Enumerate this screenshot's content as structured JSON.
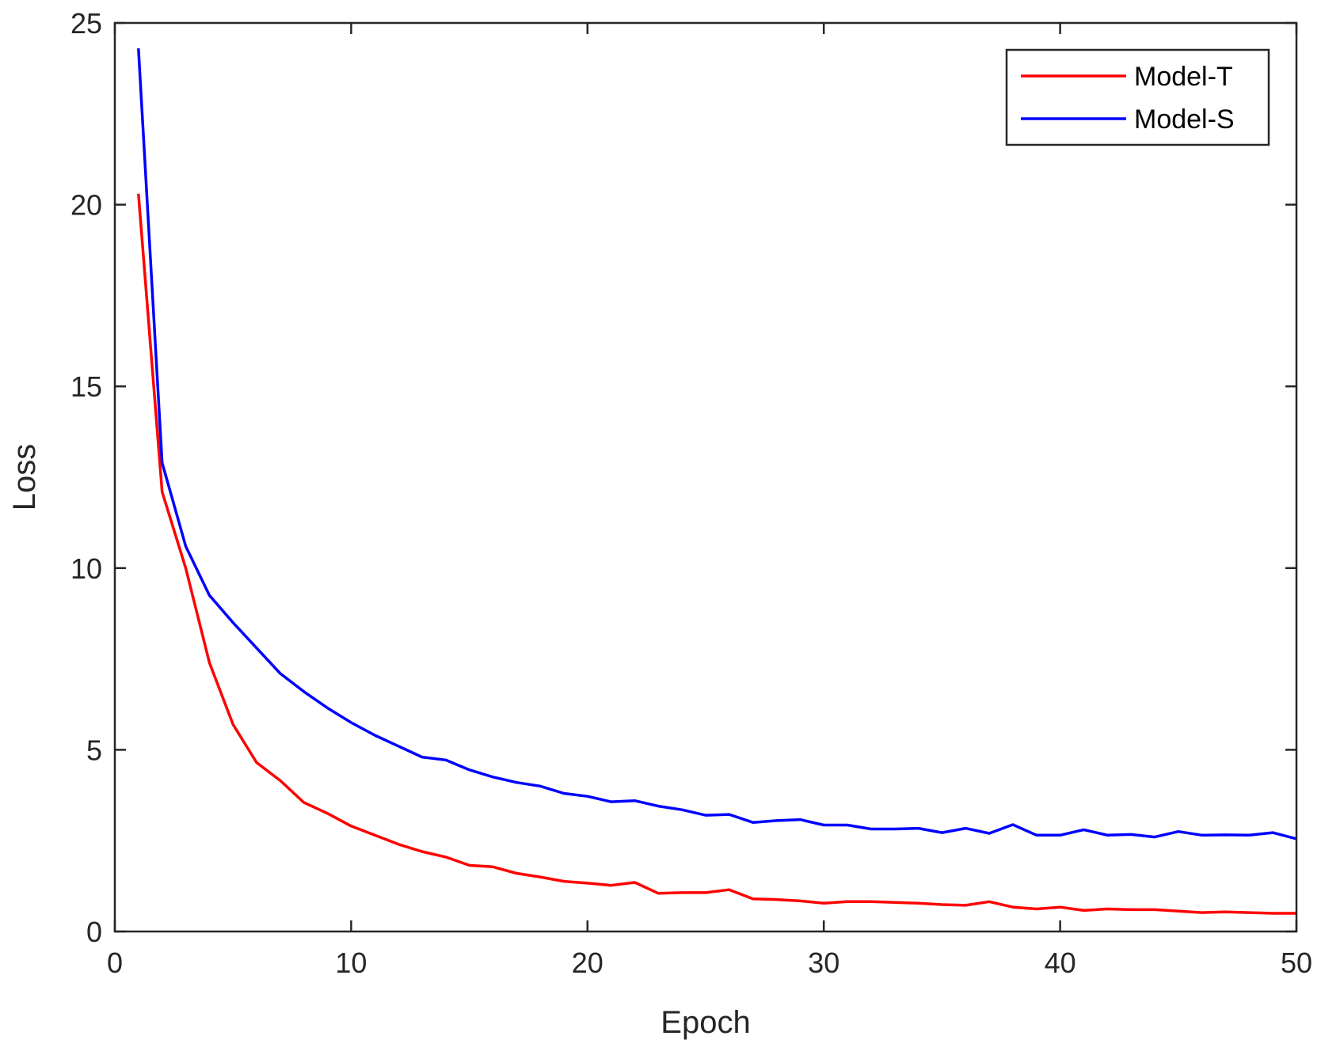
{
  "chart_data": {
    "type": "line",
    "xlabel": "Epoch",
    "ylabel": "Loss",
    "xlim": [
      0,
      50
    ],
    "ylim": [
      0,
      25
    ],
    "xticks": [
      0,
      10,
      20,
      30,
      40,
      50
    ],
    "yticks": [
      0,
      5,
      10,
      15,
      20,
      25
    ],
    "grid": false,
    "legend_position": "top-right",
    "x": [
      1,
      2,
      3,
      4,
      5,
      6,
      7,
      8,
      9,
      10,
      11,
      12,
      13,
      14,
      15,
      16,
      17,
      18,
      19,
      20,
      21,
      22,
      23,
      24,
      25,
      26,
      27,
      28,
      29,
      30,
      31,
      32,
      33,
      34,
      35,
      36,
      37,
      38,
      39,
      40,
      41,
      42,
      43,
      44,
      45,
      46,
      47,
      48,
      49,
      50
    ],
    "series": [
      {
        "name": "Model-T",
        "color": "#ff0000",
        "values": [
          20.3,
          12.1,
          10.0,
          7.4,
          5.7,
          4.65,
          4.15,
          3.55,
          3.25,
          2.9,
          2.65,
          2.4,
          2.2,
          2.05,
          1.82,
          1.78,
          1.6,
          1.5,
          1.38,
          1.33,
          1.27,
          1.35,
          1.05,
          1.07,
          1.07,
          1.15,
          0.9,
          0.88,
          0.84,
          0.78,
          0.82,
          0.82,
          0.8,
          0.78,
          0.74,
          0.72,
          0.82,
          0.67,
          0.62,
          0.67,
          0.58,
          0.62,
          0.6,
          0.6,
          0.56,
          0.52,
          0.54,
          0.52,
          0.5,
          0.5
        ]
      },
      {
        "name": "Model-S",
        "color": "#0000ff",
        "values": [
          24.3,
          12.9,
          10.6,
          9.25,
          8.5,
          7.8,
          7.1,
          6.6,
          6.15,
          5.75,
          5.4,
          5.1,
          4.8,
          4.72,
          4.45,
          4.25,
          4.1,
          4.0,
          3.8,
          3.72,
          3.57,
          3.6,
          3.45,
          3.35,
          3.2,
          3.22,
          3.0,
          3.05,
          3.08,
          2.93,
          2.93,
          2.82,
          2.82,
          2.84,
          2.72,
          2.84,
          2.7,
          2.94,
          2.65,
          2.65,
          2.8,
          2.65,
          2.67,
          2.6,
          2.75,
          2.65,
          2.66,
          2.65,
          2.72,
          2.55
        ]
      }
    ]
  }
}
